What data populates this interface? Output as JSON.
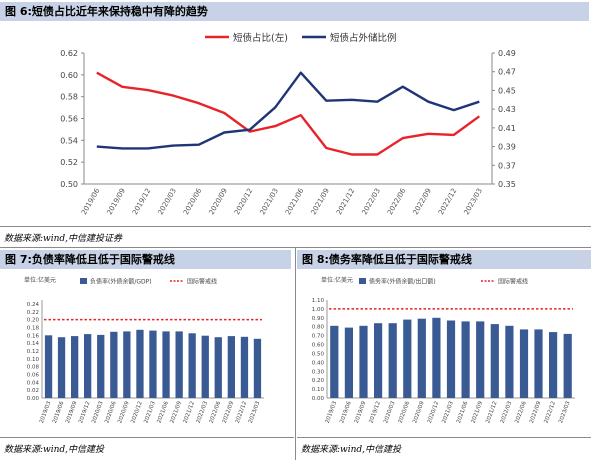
{
  "fig6": {
    "title": "图 6:短债占比近年来保持稳中有降的趋势",
    "source": "数据来源:wind,中信建投证券",
    "chart_data": {
      "type": "line",
      "title": "",
      "legend_position": "top",
      "categories": [
        "2019/06",
        "2019/09",
        "2019/12",
        "2020/03",
        "2020/06",
        "2020/09",
        "2020/12",
        "2021/03",
        "2021/06",
        "2021/09",
        "2021/12",
        "2022/03",
        "2022/06",
        "2022/09",
        "2022/12",
        "2023/03"
      ],
      "y_left": {
        "ylim": [
          0.5,
          0.62
        ],
        "ticks": [
          "0.50",
          "0.52",
          "0.54",
          "0.56",
          "0.58",
          "0.60",
          "0.62"
        ]
      },
      "y_right": {
        "ylim": [
          0.35,
          0.49
        ],
        "ticks": [
          "0.35",
          "0.37",
          "0.39",
          "0.41",
          "0.43",
          "0.45",
          "0.47",
          "0.49"
        ]
      },
      "series": [
        {
          "name": "短债占比(左)",
          "axis": "left",
          "color": "#e8232a",
          "values": [
            0.602,
            0.589,
            0.586,
            0.581,
            0.574,
            0.565,
            0.548,
            0.553,
            0.563,
            0.533,
            0.527,
            0.527,
            0.542,
            0.546,
            0.545,
            0.562
          ]
        },
        {
          "name": "短债占外储比例",
          "axis": "right",
          "color": "#1f3577",
          "values": [
            0.39,
            0.388,
            0.388,
            0.391,
            0.392,
            0.405,
            0.408,
            0.432,
            0.469,
            0.439,
            0.44,
            0.438,
            0.454,
            0.438,
            0.429,
            0.438
          ]
        }
      ]
    }
  },
  "fig7": {
    "title": "图 7:负债率降低且低于国际警戒线",
    "source": "数据来源:wind,中信建投",
    "chart_data": {
      "type": "bar",
      "title": "",
      "unit_label": "单位:亿美元",
      "legend": [
        "负债率(外债余额/GDP)",
        "国际警戒线"
      ],
      "bar_color": "#3a5a94",
      "line_color": "#e8232a",
      "categories": [
        "2019/03",
        "2019/06",
        "2019/09",
        "2019/12",
        "2020/03",
        "2020/06",
        "2020/09",
        "2020/12",
        "2021/03",
        "2021/06",
        "2021/09",
        "2021/12",
        "2022/03",
        "2022/06",
        "2022/09",
        "2022/12",
        "2023/03"
      ],
      "values": [
        0.16,
        0.155,
        0.158,
        0.163,
        0.161,
        0.169,
        0.17,
        0.174,
        0.172,
        0.17,
        0.17,
        0.165,
        0.159,
        0.155,
        0.158,
        0.156,
        0.151
      ],
      "threshold": 0.2,
      "ylim": [
        0,
        0.25
      ],
      "ticks": [
        "0.00",
        "0.02",
        "0.04",
        "0.06",
        "0.08",
        "0.10",
        "0.12",
        "0.14",
        "0.16",
        "0.18",
        "0.20",
        "0.22",
        "0.24"
      ]
    }
  },
  "fig8": {
    "title": "图 8:债务率降低且低于国际警戒线",
    "source": "数据来源:wind,中信建投",
    "chart_data": {
      "type": "bar",
      "title": "",
      "unit_label": "单位:亿美元",
      "legend": [
        "债务率(外债余额/出口额)",
        "国际警戒线"
      ],
      "bar_color": "#3a5a94",
      "line_color": "#e8232a",
      "categories": [
        "2019/03",
        "2019/06",
        "2019/09",
        "2019/12",
        "2020/03",
        "2020/06",
        "2020/09",
        "2020/12",
        "2021/03",
        "2021/06",
        "2021/09",
        "2021/12",
        "2022/03",
        "2022/06",
        "2022/09",
        "2022/12",
        "2023/03"
      ],
      "values": [
        0.81,
        0.79,
        0.81,
        0.84,
        0.84,
        0.88,
        0.89,
        0.9,
        0.87,
        0.86,
        0.86,
        0.83,
        0.81,
        0.77,
        0.77,
        0.74,
        0.72
      ],
      "threshold": 1.0,
      "ylim": [
        0,
        1.1
      ],
      "ticks": [
        "0.00",
        "0.10",
        "0.20",
        "0.30",
        "0.40",
        "0.50",
        "0.60",
        "0.70",
        "0.80",
        "0.90",
        "1.00",
        "1.10"
      ]
    }
  }
}
